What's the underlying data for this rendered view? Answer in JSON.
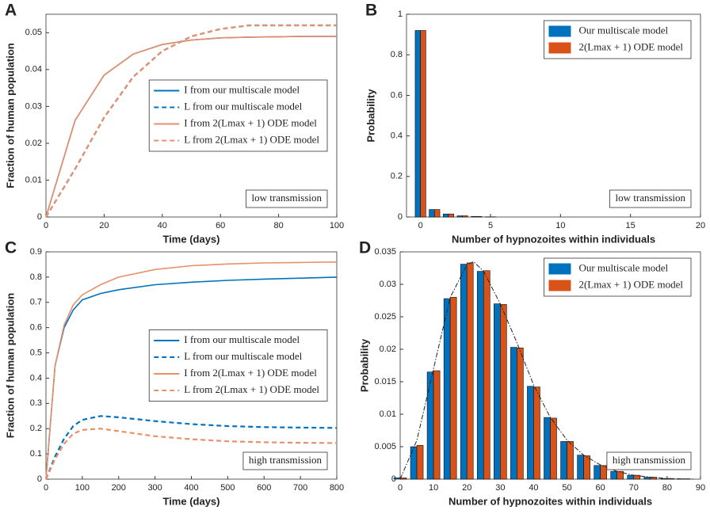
{
  "chart_data": [
    {
      "type": "line",
      "label": "A",
      "xlabel": "Time (days)",
      "ylabel": "Fraction of human population",
      "annotation": "low transmission",
      "x": [
        0,
        10,
        20,
        30,
        40,
        50,
        60,
        70,
        80,
        90,
        100
      ],
      "xlim": [
        0,
        100
      ],
      "xticks": [
        0,
        20,
        40,
        60,
        80,
        100
      ],
      "ylim": [
        0,
        0.055
      ],
      "yticks": [
        0,
        0.01,
        0.02,
        0.03,
        0.04,
        0.05
      ],
      "legend": "right",
      "series": [
        {
          "name": "I from our multiscale model",
          "color": "#0072BD",
          "dash": false,
          "values": [
            0,
            0.0262,
            0.0385,
            0.0442,
            0.0468,
            0.048,
            0.0486,
            0.0488,
            0.0489,
            0.049,
            0.049
          ]
        },
        {
          "name": "L from our multiscale model",
          "color": "#0072BD",
          "dash": true,
          "values": [
            0,
            0.013,
            0.027,
            0.038,
            0.045,
            0.049,
            0.051,
            0.052,
            0.052,
            0.052,
            0.052
          ]
        },
        {
          "name": "I from 2(Lmax + 1) ODE model",
          "color": "#E8906A",
          "dash": false,
          "values": [
            0,
            0.0262,
            0.0385,
            0.0442,
            0.0468,
            0.048,
            0.0486,
            0.0488,
            0.0489,
            0.049,
            0.049
          ]
        },
        {
          "name": "L from 2(Lmax + 1) ODE model",
          "color": "#E8906A",
          "dash": true,
          "values": [
            0,
            0.013,
            0.027,
            0.038,
            0.045,
            0.049,
            0.051,
            0.052,
            0.052,
            0.052,
            0.052
          ]
        }
      ]
    },
    {
      "type": "bar",
      "label": "B",
      "xlabel": "Number of hypnozoites within individuals",
      "ylabel": "Probability",
      "annotation": "low transmission",
      "x": [
        0,
        1,
        2,
        3,
        4,
        5
      ],
      "xlim": [
        -1,
        20
      ],
      "xticks": [
        0,
        5,
        10,
        15,
        20
      ],
      "ylim": [
        0,
        1
      ],
      "yticks": [
        0,
        0.2,
        0.4,
        0.6,
        0.8,
        1
      ],
      "legend": "upper right",
      "series": [
        {
          "name": "Our multiscale model",
          "color": "#0072BD",
          "values": [
            0.92,
            0.037,
            0.015,
            0.006,
            0.003,
            0.001
          ]
        },
        {
          "name": "2(Lmax + 1) ODE model",
          "color": "#D95319",
          "values": [
            0.92,
            0.037,
            0.015,
            0.006,
            0.003,
            0.001
          ]
        }
      ]
    },
    {
      "type": "line",
      "label": "C",
      "xlabel": "Time (days)",
      "ylabel": "Fraction of human population",
      "annotation": "high transmission",
      "x": [
        0,
        25,
        50,
        75,
        100,
        150,
        200,
        300,
        400,
        500,
        600,
        700,
        800
      ],
      "xlim": [
        0,
        800
      ],
      "xticks": [
        0,
        100,
        200,
        300,
        400,
        500,
        600,
        700,
        800
      ],
      "ylim": [
        0,
        0.9
      ],
      "yticks": [
        0,
        0.1,
        0.2,
        0.3,
        0.4,
        0.5,
        0.6,
        0.7,
        0.8,
        0.9
      ],
      "legend": "right",
      "series": [
        {
          "name": "I from our multiscale model",
          "color": "#0072BD",
          "dash": false,
          "values": [
            0,
            0.45,
            0.6,
            0.67,
            0.71,
            0.735,
            0.75,
            0.77,
            0.78,
            0.787,
            0.792,
            0.796,
            0.8
          ]
        },
        {
          "name": "L from our multiscale model",
          "color": "#0072BD",
          "dash": true,
          "values": [
            0,
            0.09,
            0.16,
            0.21,
            0.235,
            0.25,
            0.245,
            0.23,
            0.218,
            0.21,
            0.206,
            0.204,
            0.203
          ]
        },
        {
          "name": "I from 2(Lmax + 1) ODE model",
          "color": "#E8906A",
          "dash": false,
          "values": [
            0,
            0.45,
            0.61,
            0.69,
            0.73,
            0.77,
            0.8,
            0.83,
            0.845,
            0.852,
            0.856,
            0.858,
            0.86
          ]
        },
        {
          "name": "L from 2(Lmax + 1) ODE model",
          "color": "#E8906A",
          "dash": true,
          "values": [
            0,
            0.08,
            0.14,
            0.18,
            0.195,
            0.2,
            0.19,
            0.17,
            0.158,
            0.15,
            0.146,
            0.144,
            0.143
          ]
        }
      ]
    },
    {
      "type": "bar",
      "label": "D",
      "xlabel": "Number of hypnozoites within individuals",
      "ylabel": "Probability",
      "annotation": "high transmission",
      "x": [
        0,
        5,
        10,
        15,
        20,
        25,
        30,
        35,
        40,
        45,
        50,
        55,
        60,
        65,
        70,
        75,
        80,
        85
      ],
      "xlim": [
        0,
        90
      ],
      "xticks": [
        0,
        10,
        20,
        30,
        40,
        50,
        60,
        70,
        80,
        90
      ],
      "ylim": [
        0,
        0.035
      ],
      "yticks": [
        0,
        0.005,
        0.01,
        0.015,
        0.02,
        0.025,
        0.03,
        0.035
      ],
      "legend": "upper right",
      "series": [
        {
          "name": "Our multiscale model",
          "color": "#0072BD",
          "values": [
            0.0002,
            0.005,
            0.0165,
            0.0278,
            0.0331,
            0.032,
            0.027,
            0.0203,
            0.0143,
            0.0095,
            0.0058,
            0.0037,
            0.0021,
            0.0012,
            0.0006,
            0.0003,
            0.0001,
            5e-05
          ]
        },
        {
          "name": "2(Lmax + 1) ODE model",
          "color": "#D95319",
          "values": [
            0.0002,
            0.0052,
            0.0167,
            0.028,
            0.0333,
            0.0321,
            0.0269,
            0.0202,
            0.0142,
            0.0094,
            0.0058,
            0.0036,
            0.0021,
            0.0012,
            0.0006,
            0.0003,
            0.0001,
            5e-05
          ]
        }
      ],
      "curve": {
        "color": "#222222",
        "x": [
          0,
          5,
          10,
          15,
          20,
          22,
          25,
          30,
          35,
          40,
          45,
          50,
          55,
          60,
          65,
          70,
          75,
          80,
          88
        ],
        "values": [
          0,
          0.006,
          0.017,
          0.028,
          0.033,
          0.0335,
          0.032,
          0.027,
          0.021,
          0.0145,
          0.0095,
          0.006,
          0.0037,
          0.0022,
          0.0012,
          0.0006,
          0.0003,
          0.0001,
          0
        ]
      }
    }
  ]
}
